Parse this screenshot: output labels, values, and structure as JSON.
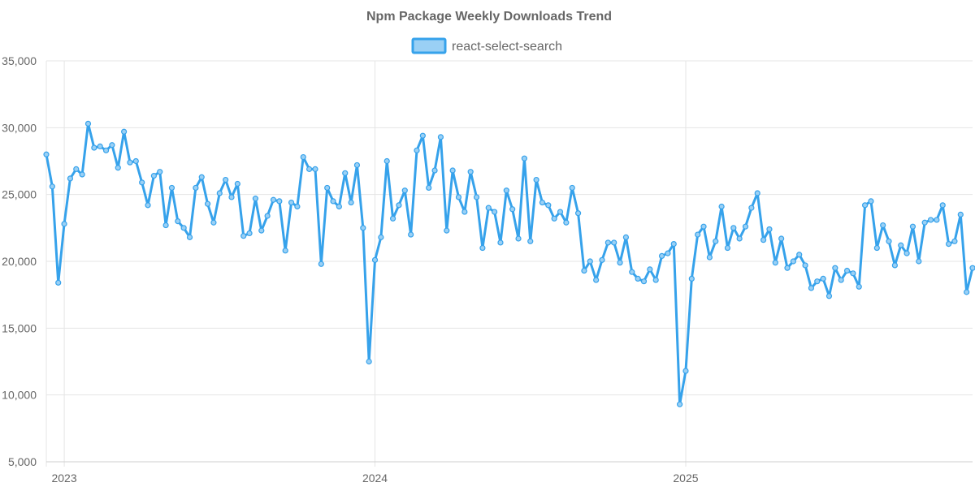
{
  "chart_data": {
    "type": "line",
    "title": "Npm Package Weekly Downloads Trend",
    "xlabel": "",
    "ylabel": "",
    "ylim": [
      5000,
      35000
    ],
    "yticks": [
      5000,
      10000,
      15000,
      20000,
      25000,
      30000,
      35000
    ],
    "ytick_labels": [
      "5,000",
      "10,000",
      "15,000",
      "20,000",
      "25,000",
      "30,000",
      "35,000"
    ],
    "xticks": [
      {
        "label": "2023",
        "week_index": 3
      },
      {
        "label": "2024",
        "week_index": 55
      },
      {
        "label": "2025",
        "week_index": 107
      }
    ],
    "grid": true,
    "legend_position": "top-center",
    "colors": {
      "line": "#36a2eb",
      "fill": "#9ad0f5",
      "point_fill": "#9ad0f5",
      "title": "#666666",
      "tick": "#666666",
      "grid": "#e5e5e5"
    },
    "series": [
      {
        "name": "react-select-search",
        "values": [
          28000,
          25600,
          18400,
          22800,
          26200,
          26900,
          26500,
          30300,
          28500,
          28600,
          28300,
          28700,
          27000,
          29700,
          27400,
          27500,
          25900,
          24200,
          26400,
          26700,
          22700,
          25500,
          23000,
          22500,
          21800,
          25500,
          26300,
          24300,
          22900,
          25100,
          26100,
          24800,
          25800,
          21900,
          22100,
          24700,
          22300,
          23400,
          24600,
          24500,
          20800,
          24400,
          24100,
          27800,
          26900,
          26900,
          19800,
          25500,
          24500,
          24100,
          26600,
          24400,
          27200,
          22500,
          12500,
          20100,
          21800,
          27500,
          23200,
          24200,
          25300,
          22000,
          28300,
          29400,
          25500,
          26800,
          29300,
          22300,
          26800,
          24800,
          23700,
          26700,
          24800,
          21000,
          24000,
          23700,
          21400,
          25300,
          23900,
          21700,
          27700,
          21500,
          26100,
          24400,
          24200,
          23200,
          23700,
          22900,
          25500,
          23600,
          19300,
          20000,
          18600,
          20100,
          21400,
          21400,
          19900,
          21800,
          19200,
          18700,
          18500,
          19400,
          18600,
          20400,
          20600,
          21300,
          9300,
          11800,
          18700,
          22000,
          22600,
          20300,
          21500,
          24100,
          21000,
          22500,
          21700,
          22600,
          24000,
          25100,
          21600,
          22400,
          19900,
          21700,
          19500,
          20000,
          20500,
          19700,
          18000,
          18500,
          18700,
          17400,
          19500,
          18600,
          19300,
          19100,
          18100,
          24200,
          24500,
          21000,
          22700,
          21500,
          19700,
          21200,
          20600,
          22600,
          20000,
          22900,
          23100,
          23100,
          24200,
          21300,
          21500,
          23500,
          17700,
          19500
        ]
      }
    ]
  }
}
